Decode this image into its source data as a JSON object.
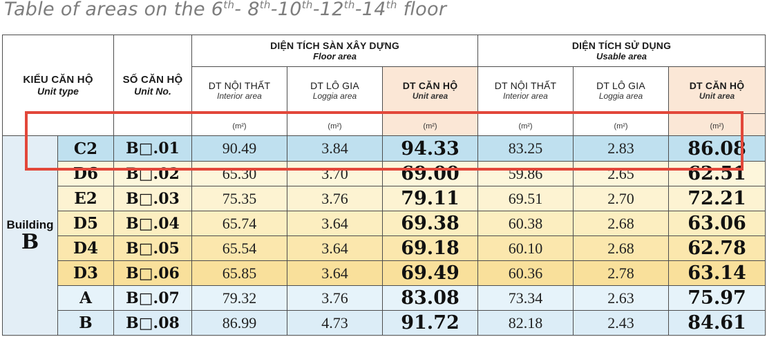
{
  "title": {
    "prefix": "Table of areas on the 6",
    "sup1": "th",
    "mid1": "- 8",
    "sup2": "th",
    "mid2": "-10",
    "sup3": "th",
    "mid3": "-12",
    "sup4": "th",
    "mid4": "-14",
    "sup5": "th",
    "suffix": " floor"
  },
  "header": {
    "unit_type_vi": "KIỂU CĂN HỘ",
    "unit_type_en": "Unit type",
    "unit_no_vi": "SỐ CĂN HỘ",
    "unit_no_en": "Unit No.",
    "floor_area_vi": "DIỆN TÍCH SÀN XÂY DỰNG",
    "floor_area_en": "Floor area",
    "usable_area_vi": "DIỆN TÍCH SỬ DỤNG",
    "usable_area_en": "Usable area",
    "sub": {
      "interior_vi": "DT NỘI THẤT",
      "interior_en": "Interior area",
      "loggia_vi": "DT LÔ GIA",
      "loggia_en": "Loggia area",
      "unit_vi": "DT CĂN HỘ",
      "unit_en": "Unit area",
      "unit_label": "(m²)"
    }
  },
  "building": {
    "label": "Building",
    "letter": "B"
  },
  "rows": [
    {
      "type": "C2",
      "no": "B□.01",
      "f_int": "90.49",
      "f_log": "3.84",
      "f_unit": "94.33",
      "u_int": "83.25",
      "u_log": "2.83",
      "u_unit": "86.08"
    },
    {
      "type": "D6",
      "no": "B□.02",
      "f_int": "65.30",
      "f_log": "3.70",
      "f_unit": "69.00",
      "u_int": "59.86",
      "u_log": "2.65",
      "u_unit": "62.51"
    },
    {
      "type": "E2",
      "no": "B□.03",
      "f_int": "75.35",
      "f_log": "3.76",
      "f_unit": "79.11",
      "u_int": "69.51",
      "u_log": "2.70",
      "u_unit": "72.21"
    },
    {
      "type": "D5",
      "no": "B□.04",
      "f_int": "65.74",
      "f_log": "3.64",
      "f_unit": "69.38",
      "u_int": "60.38",
      "u_log": "2.68",
      "u_unit": "63.06"
    },
    {
      "type": "D4",
      "no": "B□.05",
      "f_int": "65.54",
      "f_log": "3.64",
      "f_unit": "69.18",
      "u_int": "60.10",
      "u_log": "2.68",
      "u_unit": "62.78"
    },
    {
      "type": "D3",
      "no": "B□.06",
      "f_int": "65.85",
      "f_log": "3.64",
      "f_unit": "69.49",
      "u_int": "60.36",
      "u_log": "2.78",
      "u_unit": "63.14"
    },
    {
      "type": "A",
      "no": "B□.07",
      "f_int": "79.32",
      "f_log": "3.76",
      "f_unit": "83.08",
      "u_int": "73.34",
      "u_log": "2.63",
      "u_unit": "75.97"
    },
    {
      "type": "B",
      "no": "B□.08",
      "f_int": "86.99",
      "f_log": "4.73",
      "f_unit": "91.72",
      "u_int": "82.18",
      "u_log": "2.43",
      "u_unit": "84.61"
    }
  ],
  "row_colors": [
    "#bfe0ef",
    "#fdf6db",
    "#fdf3d2",
    "#fceec0",
    "#fbe7ad",
    "#f9e09b",
    "#e6f3fa",
    "#dcedf7"
  ],
  "colors": {
    "highlight_header": "#fbe7d6",
    "overlay_box": "#e2473a",
    "building_cell": "#e3eef6"
  }
}
